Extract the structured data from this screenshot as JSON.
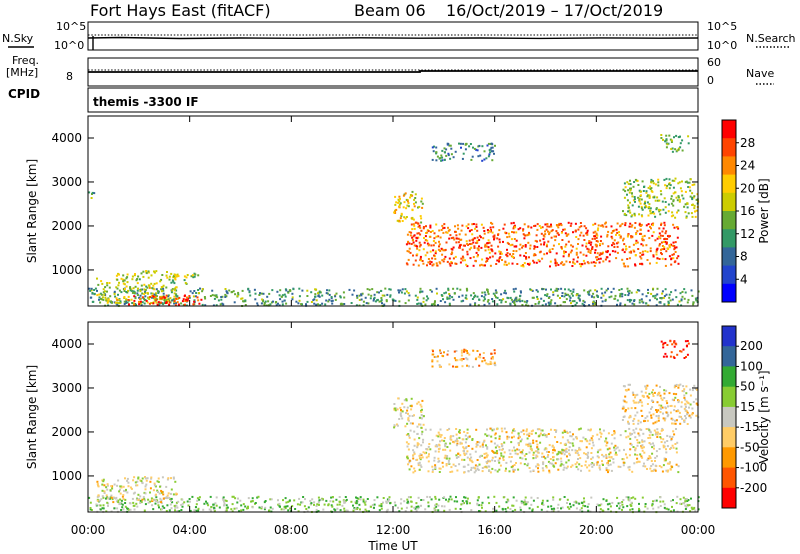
{
  "header": {
    "station": "Fort Hays East (fitACF)",
    "beam": "Beam 06",
    "dates": "16/Oct/2019 – 17/Oct/2019"
  },
  "noise_panel": {
    "left_label": "N.Sky",
    "right_label": "N.Search",
    "left_ticks": [
      "10^5",
      "10^0"
    ],
    "right_ticks": [
      "10^5",
      "10^0"
    ]
  },
  "freq_panel": {
    "left_label_1": "Freq.",
    "left_label_2": "[MHz]",
    "left_ticks": [
      "8"
    ],
    "right_label": "Nave",
    "right_ticks": [
      "60",
      "0"
    ]
  },
  "cpid_panel": {
    "label": "CPID",
    "value": "themis -3300 IF"
  },
  "chart_data": [
    {
      "type": "heatmap",
      "title": "",
      "xlabel": "Time UT",
      "ylabel": "Slant Range [km]",
      "x_ticks": [
        "00:00",
        "04:00",
        "08:00",
        "12:00",
        "16:00",
        "20:00",
        "00:00"
      ],
      "xlim": [
        0,
        24
      ],
      "y_ticks": [
        1000,
        2000,
        3000,
        4000
      ],
      "ylim": [
        180,
        4500
      ],
      "colorbar": {
        "label": "Power [dB]",
        "ticks": [
          "28",
          "24",
          "20",
          "16",
          "12",
          "8",
          "4"
        ],
        "colors": [
          "#ff0000",
          "#ff4400",
          "#ff8800",
          "#ffcc00",
          "#cccc00",
          "#66aa33",
          "#339966",
          "#336699",
          "#2244cc",
          "#0000ff"
        ]
      },
      "regions": [
        {
          "t0": 0.0,
          "t1": 24.0,
          "r0": 200,
          "r1": 600,
          "level": 0.35
        },
        {
          "t0": 0.3,
          "t1": 3.5,
          "r0": 250,
          "r1": 1000,
          "level": 0.55
        },
        {
          "t0": 1.5,
          "t1": 4.5,
          "r0": 220,
          "r1": 450,
          "level": 0.95
        },
        {
          "t0": 3.3,
          "t1": 4.3,
          "r0": 700,
          "r1": 950,
          "level": 0.5
        },
        {
          "t0": 12.0,
          "t1": 13.2,
          "r0": 2100,
          "r1": 2800,
          "level": 0.6
        },
        {
          "t0": 12.5,
          "t1": 23.2,
          "r0": 1100,
          "r1": 2100,
          "level": 0.85
        },
        {
          "t0": 13.5,
          "t1": 16.0,
          "r0": 3500,
          "r1": 3900,
          "level": 0.3
        },
        {
          "t0": 21.0,
          "t1": 24.0,
          "r0": 2200,
          "r1": 3100,
          "level": 0.5
        },
        {
          "t0": 22.5,
          "t1": 23.6,
          "r0": 3700,
          "r1": 4100,
          "level": 0.45
        },
        {
          "t0": 0.0,
          "t1": 0.3,
          "r0": 2600,
          "r1": 2800,
          "level": 0.4
        }
      ]
    },
    {
      "type": "heatmap",
      "title": "",
      "xlabel": "Time UT",
      "ylabel": "Slant Range [km]",
      "x_ticks": [
        "00:00",
        "04:00",
        "08:00",
        "12:00",
        "16:00",
        "20:00",
        "00:00"
      ],
      "xlim": [
        0,
        24
      ],
      "y_ticks": [
        1000,
        2000,
        3000,
        4000
      ],
      "ylim": [
        180,
        4500
      ],
      "colorbar": {
        "label": "Velocity [m s⁻¹]",
        "ticks": [
          "200",
          "100",
          "50",
          "15",
          "-15",
          "-50",
          "-100",
          "-200"
        ],
        "colors": [
          "#2233cc",
          "#336699",
          "#33aa33",
          "#88cc33",
          "#c8c8c0",
          "#ffcc66",
          "#ff9900",
          "#ff5500",
          "#ff0000"
        ]
      },
      "regions": [
        {
          "t0": 0.0,
          "t1": 24.0,
          "r0": 200,
          "r1": 550,
          "level": 0.62
        },
        {
          "t0": 0.3,
          "t1": 3.5,
          "r0": 400,
          "r1": 1000,
          "level": 0.45
        },
        {
          "t0": 12.0,
          "t1": 13.2,
          "r0": 2100,
          "r1": 2800,
          "level": 0.45
        },
        {
          "t0": 12.5,
          "t1": 23.2,
          "r0": 1100,
          "r1": 2100,
          "level": 0.45
        },
        {
          "t0": 13.5,
          "t1": 16.0,
          "r0": 3500,
          "r1": 3900,
          "level": 0.3
        },
        {
          "t0": 21.0,
          "t1": 24.0,
          "r0": 2200,
          "r1": 3100,
          "level": 0.4
        },
        {
          "t0": 22.5,
          "t1": 23.6,
          "r0": 3700,
          "r1": 4100,
          "level": 0.0
        }
      ]
    }
  ]
}
